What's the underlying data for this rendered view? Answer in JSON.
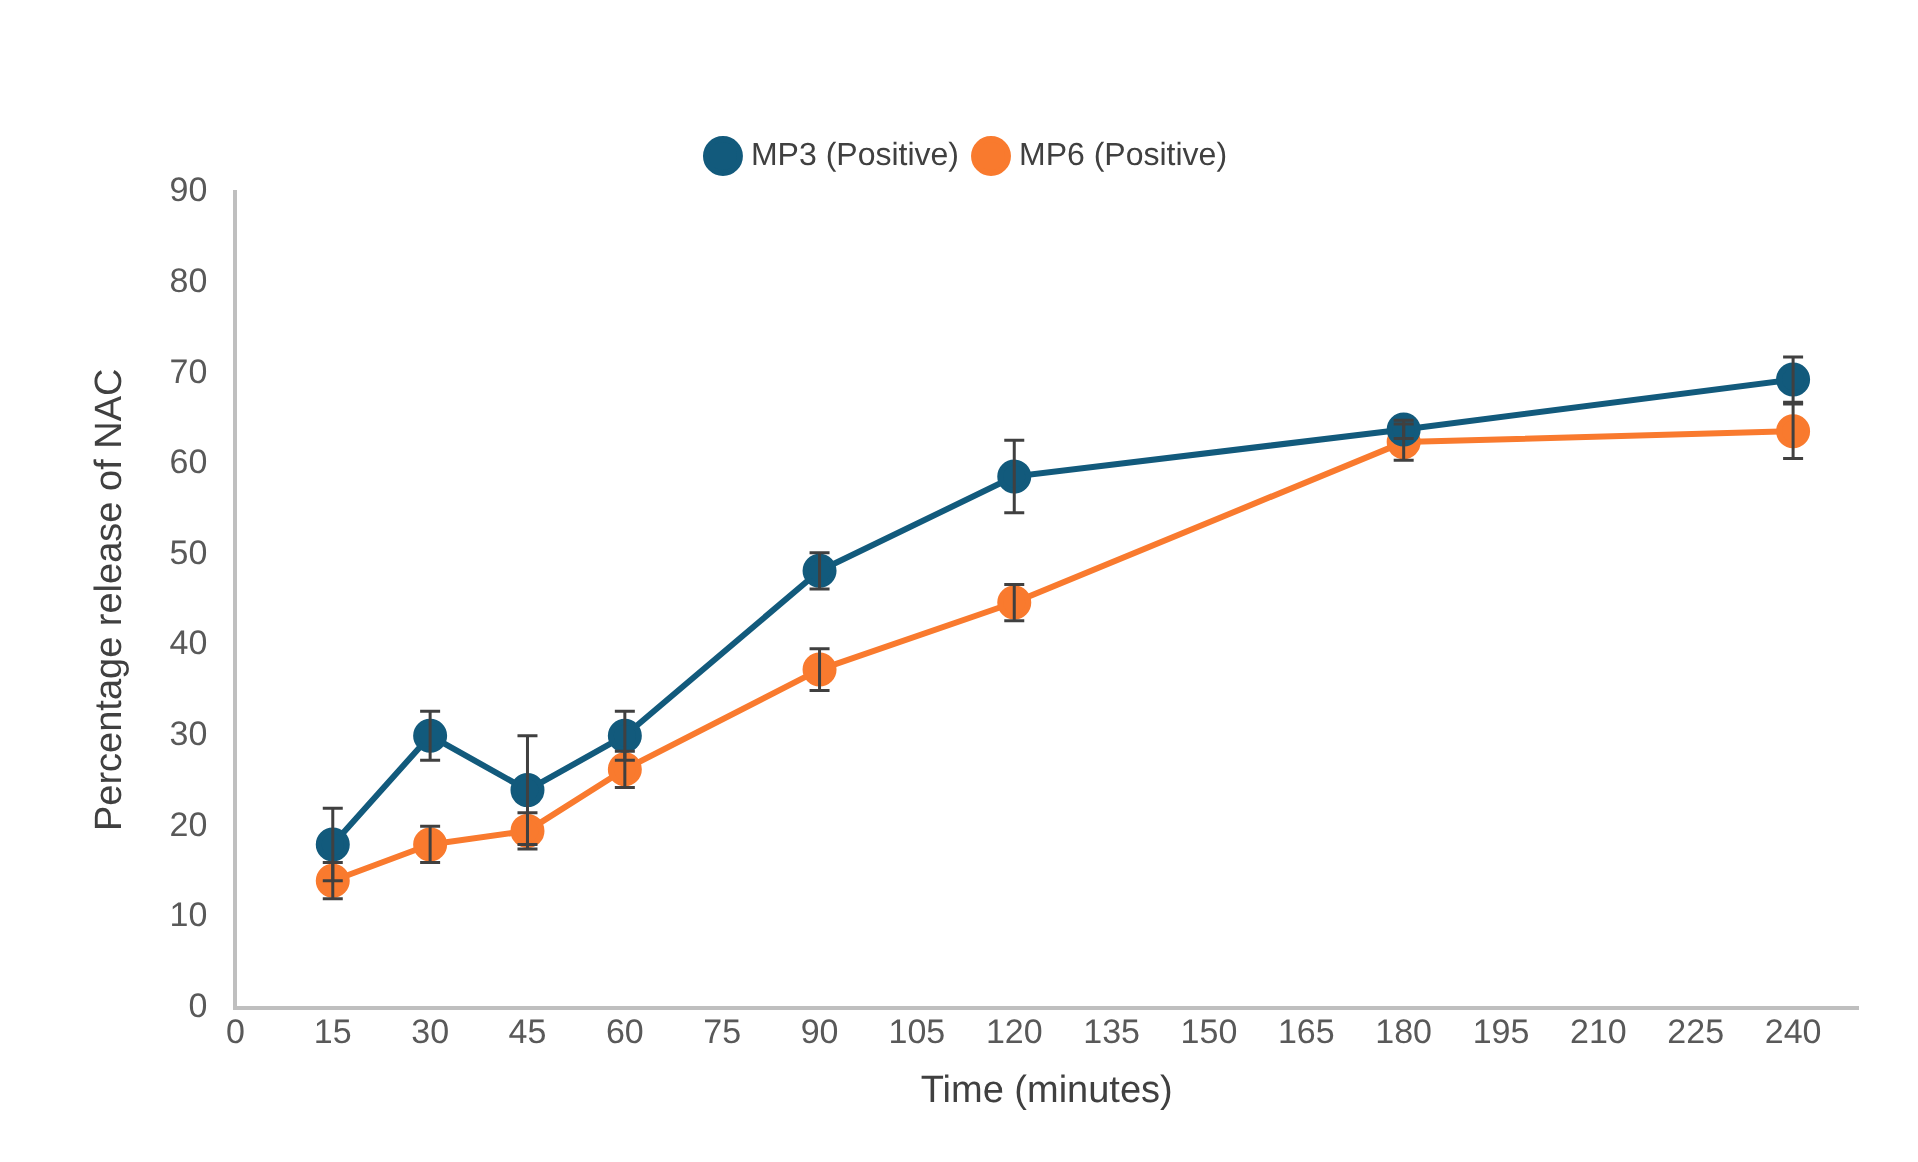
{
  "chart_data": {
    "type": "line",
    "xlabel": "Time (minutes)",
    "ylabel": "Percentage release of NAC",
    "x": [
      15,
      30,
      45,
      60,
      90,
      120,
      180,
      240
    ],
    "series": [
      {
        "name": "MP3 (Positive)",
        "color": "#125a7c",
        "values": [
          18,
          30,
          24,
          30,
          48.2,
          58.6,
          63.8,
          69.3
        ],
        "errors": [
          4,
          2.7,
          6,
          2.7,
          2,
          4,
          1,
          2.5
        ]
      },
      {
        "name": "MP6 (Positive)",
        "color": "#f97a2e",
        "values": [
          14,
          18,
          19.5,
          26.3,
          37.3,
          44.7,
          62.4,
          63.6
        ],
        "errors": [
          2,
          2,
          2,
          2,
          2.3,
          2,
          2,
          3
        ]
      }
    ],
    "xlim": [
      0,
      250
    ],
    "xticks": [
      0,
      15,
      30,
      45,
      60,
      75,
      90,
      105,
      120,
      135,
      150,
      165,
      180,
      195,
      210,
      225,
      240
    ],
    "ylim": [
      0,
      90
    ],
    "yticks": [
      0,
      10,
      20,
      30,
      40,
      50,
      60,
      70,
      80,
      90
    ],
    "grid": false,
    "legend": "top",
    "marker": "circle",
    "line_style": "solid"
  }
}
